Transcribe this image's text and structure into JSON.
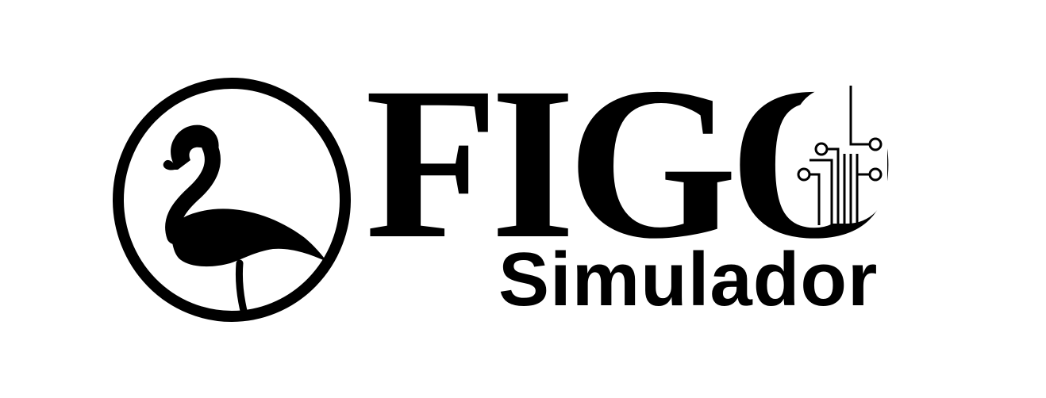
{
  "logo": {
    "wordmark": "FIGO",
    "subtitle": "Simulador",
    "emblem_icon": "flamingo-icon",
    "circuit_icon": "circuit-icon"
  },
  "colors": {
    "background": "#ffffff",
    "ink": "#000000"
  }
}
